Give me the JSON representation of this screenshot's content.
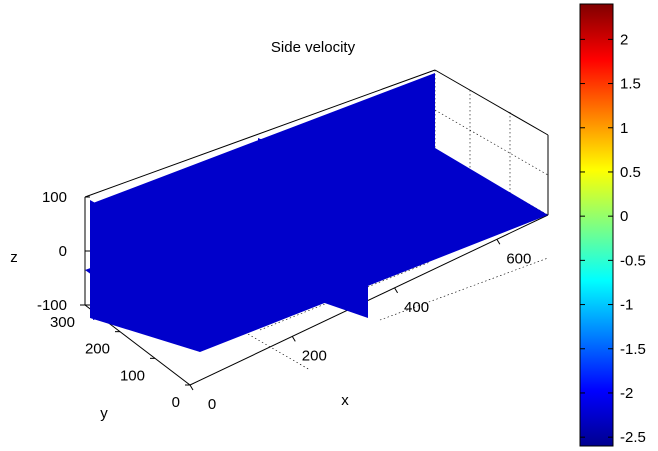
{
  "chart_data": {
    "type": "heatmap",
    "title": "Side velocity",
    "xlabel": "x",
    "ylabel": "y",
    "zlabel": "z",
    "x_ticks": [
      "0",
      "200",
      "400",
      "600"
    ],
    "y_ticks": [
      "0",
      "100",
      "200",
      "300"
    ],
    "z_ticks": [
      "100",
      "0",
      "-100"
    ],
    "xlim": [
      0,
      700
    ],
    "ylim": [
      0,
      300
    ],
    "zlim": [
      -100,
      100
    ],
    "colorbar": {
      "colormap": "jet",
      "range": [
        -2.6,
        2.4
      ],
      "ticks": [
        "2",
        "1.5",
        "1",
        "0.5",
        "0",
        "-0.5",
        "-1",
        "-1.5",
        "-2",
        "-2.5"
      ],
      "tick_values": [
        2,
        1.5,
        1,
        0.5,
        0,
        -0.5,
        -1,
        -1.5,
        -2,
        -2.5
      ]
    },
    "slices": [
      {
        "plane": "z",
        "value": 0
      },
      {
        "plane": "y",
        "value": 300
      },
      {
        "plane": "x",
        "value": 0
      },
      {
        "plane": "x",
        "value": 350
      }
    ],
    "grid": true
  }
}
